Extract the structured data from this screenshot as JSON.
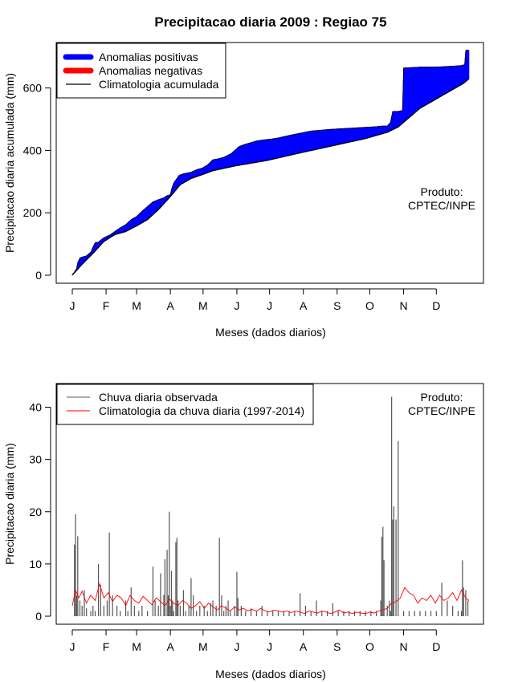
{
  "title": "Precipitacao diaria 2009 : Regiao 75",
  "product_note": [
    "Produto:",
    "CPTEC/INPE"
  ],
  "chart_data": [
    {
      "type": "area",
      "name": "accumulated",
      "xlabel": "Meses (dados diarios)",
      "ylabel": "Precipitacao diaria acumulada (mm)",
      "xlim": [
        1,
        365
      ],
      "ylim": [
        0,
        720
      ],
      "x_tick_days": [
        1,
        32,
        60,
        91,
        121,
        152,
        182,
        213,
        244,
        274,
        305,
        335
      ],
      "x_tick_labels": [
        "J",
        "F",
        "M",
        "A",
        "M",
        "J",
        "J",
        "A",
        "S",
        "O",
        "N",
        "D"
      ],
      "y_ticks": [
        0,
        200,
        400,
        600
      ],
      "legend": [
        {
          "label": "Anomalias positivas",
          "color": "#0000ff"
        },
        {
          "label": "Anomalias negativas",
          "color": "#ff0000"
        },
        {
          "label": "Climatologia acumulada",
          "color": "#000000"
        }
      ],
      "observed_accumulated": {
        "days": [
          1,
          3,
          5,
          6,
          8,
          10,
          14,
          18,
          20,
          22,
          25,
          27,
          30,
          33,
          36,
          40,
          45,
          50,
          55,
          60,
          65,
          70,
          75,
          80,
          85,
          88,
          91,
          92,
          94,
          97,
          99,
          103,
          110,
          115,
          120,
          125,
          130,
          135,
          140,
          147,
          150,
          152,
          153,
          156,
          160,
          165,
          170,
          175,
          180,
          185,
          190,
          200,
          210,
          220,
          230,
          240,
          250,
          260,
          270,
          280,
          285,
          290,
          293,
          295,
          300,
          304,
          305,
          320,
          330,
          340,
          350,
          358,
          361,
          362,
          363,
          365
        ],
        "values": [
          2,
          10,
          22,
          40,
          55,
          58,
          62,
          74,
          90,
          104,
          106,
          112,
          120,
          125,
          130,
          140,
          152,
          162,
          178,
          188,
          205,
          220,
          235,
          242,
          248,
          255,
          258,
          275,
          295,
          310,
          320,
          325,
          330,
          338,
          343,
          353,
          370,
          373,
          378,
          390,
          400,
          405,
          410,
          415,
          420,
          425,
          430,
          433,
          435,
          437,
          440,
          448,
          455,
          462,
          465,
          468,
          470,
          472,
          474,
          476,
          478,
          478,
          490,
          525,
          525,
          528,
          664,
          667,
          667,
          668,
          670,
          672,
          675,
          720,
          722,
          720
        ]
      },
      "climatology_accumulated": {
        "days": [
          1,
          10,
          20,
          30,
          40,
          50,
          60,
          70,
          80,
          91,
          100,
          110,
          120,
          130,
          150,
          180,
          210,
          240,
          270,
          290,
          300,
          310,
          320,
          330,
          340,
          350,
          360,
          365
        ],
        "values": [
          0,
          35,
          70,
          108,
          130,
          140,
          158,
          178,
          210,
          252,
          290,
          310,
          322,
          335,
          350,
          368,
          392,
          415,
          438,
          458,
          475,
          505,
          535,
          555,
          575,
          595,
          615,
          630
        ]
      }
    },
    {
      "type": "bar",
      "name": "daily",
      "xlabel": "Meses (dados diarios)",
      "ylabel": "Precipitacao diaria (mm)",
      "xlim": [
        1,
        365
      ],
      "ylim": [
        0,
        43
      ],
      "x_tick_days": [
        1,
        32,
        60,
        91,
        121,
        152,
        182,
        213,
        244,
        274,
        305,
        335
      ],
      "x_tick_labels": [
        "J",
        "F",
        "M",
        "A",
        "M",
        "J",
        "J",
        "A",
        "S",
        "O",
        "N",
        "D"
      ],
      "y_ticks": [
        0,
        10,
        20,
        30,
        40
      ],
      "legend": [
        {
          "label": "Chuva diaria observada",
          "color": "#555555"
        },
        {
          "label": "Climatologia da chuva diaria (1997-2014)",
          "color": "#ff0000"
        }
      ],
      "observed_daily": {
        "days": [
          3,
          4,
          5,
          6,
          8,
          10,
          12,
          14,
          18,
          20,
          22,
          25,
          27,
          30,
          33,
          35,
          38,
          42,
          45,
          50,
          52,
          55,
          58,
          62,
          65,
          70,
          75,
          77,
          80,
          82,
          85,
          86,
          88,
          89,
          90,
          91,
          92,
          93,
          94,
          96,
          97,
          98,
          100,
          103,
          105,
          108,
          110,
          112,
          115,
          118,
          122,
          125,
          128,
          130,
          133,
          136,
          138,
          140,
          142,
          144,
          146,
          150,
          152,
          153,
          156,
          160,
          165,
          170,
          175,
          180,
          185,
          190,
          195,
          200,
          205,
          210,
          215,
          220,
          225,
          230,
          235,
          240,
          245,
          250,
          255,
          260,
          265,
          270,
          275,
          280,
          284,
          285,
          286,
          287,
          290,
          292,
          293,
          294,
          295,
          296,
          298,
          300,
          305,
          310,
          315,
          320,
          325,
          330,
          335,
          340,
          345,
          350,
          355,
          358,
          359,
          360,
          362,
          364
        ],
        "values": [
          13.7,
          19.5,
          4,
          15.3,
          3,
          2,
          5,
          1.5,
          1,
          2,
          1,
          10,
          6,
          2,
          3,
          16,
          4,
          2,
          1,
          3,
          1,
          5.5,
          2,
          1,
          2,
          1,
          9.5,
          3,
          2,
          8.2,
          4.1,
          10.9,
          12.7,
          4,
          20,
          2,
          8.7,
          3,
          1,
          14.2,
          15,
          3,
          2,
          5,
          1,
          2,
          7.3,
          4,
          1,
          2,
          2,
          1,
          2.5,
          3,
          2,
          15,
          4,
          1,
          2,
          3,
          1,
          2,
          8.5,
          3.5,
          2,
          1,
          1.5,
          1,
          2,
          1,
          1,
          1,
          1,
          1,
          1,
          4.4,
          2,
          1,
          3,
          1,
          1,
          2.5,
          1,
          1,
          1,
          1,
          1,
          1,
          1,
          1,
          3,
          15.2,
          17.1,
          10.7,
          2,
          3,
          1,
          42,
          18.5,
          21,
          18.5,
          33.5,
          1,
          1,
          1,
          1,
          1,
          1,
          1,
          6.4,
          3,
          2,
          1,
          1,
          10.7,
          5.5,
          5,
          3
        ]
      },
      "climatology_daily": {
        "days": [
          1,
          4,
          7,
          10,
          14,
          18,
          22,
          26,
          30,
          34,
          38,
          42,
          46,
          50,
          54,
          58,
          62,
          66,
          70,
          74,
          78,
          82,
          86,
          90,
          94,
          98,
          102,
          106,
          110,
          114,
          118,
          122,
          126,
          130,
          134,
          138,
          142,
          146,
          150,
          154,
          158,
          162,
          166,
          170,
          174,
          178,
          182,
          186,
          190,
          194,
          198,
          202,
          206,
          210,
          214,
          218,
          222,
          226,
          230,
          234,
          238,
          242,
          246,
          250,
          254,
          258,
          262,
          266,
          270,
          274,
          278,
          282,
          286,
          290,
          294,
          298,
          302,
          306,
          310,
          314,
          318,
          322,
          326,
          330,
          334,
          338,
          342,
          346,
          350,
          354,
          358,
          362,
          365
        ],
        "values": [
          2,
          5,
          3.5,
          4.8,
          2.5,
          4,
          3,
          6.2,
          3.5,
          4.5,
          2.8,
          4,
          3.5,
          2,
          4,
          3,
          2.5,
          3.8,
          3,
          2.2,
          3.5,
          2.8,
          2,
          3.3,
          2.5,
          2,
          3,
          2.5,
          1.5,
          2,
          2.8,
          1.5,
          2.5,
          1.8,
          1.2,
          2,
          1.5,
          1,
          1.8,
          1.2,
          1.5,
          1,
          1.3,
          1,
          1.5,
          1,
          0.8,
          1.2,
          1,
          0.8,
          1,
          0.7,
          1,
          0.8,
          0.5,
          1,
          0.8,
          0.6,
          1,
          0.8,
          0.5,
          0.8,
          1.2,
          0.6,
          0.8,
          0.5,
          0.8,
          0.6,
          0.5,
          0.8,
          0.6,
          1,
          1.2,
          1.5,
          2.5,
          2.8,
          3.5,
          5.5,
          4.5,
          4,
          2.5,
          3.5,
          3,
          4,
          2.5,
          4,
          3,
          3.5,
          4.5,
          3,
          5,
          3.5,
          3
        ]
      }
    }
  ]
}
